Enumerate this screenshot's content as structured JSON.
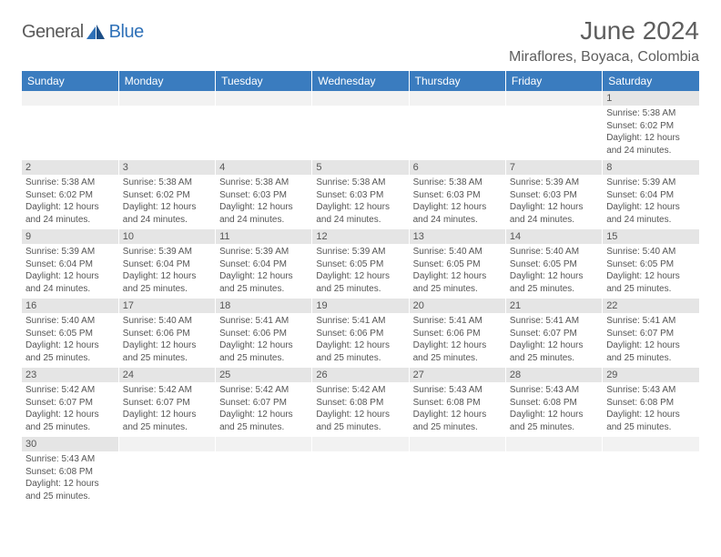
{
  "logo": {
    "text1": "General",
    "text2": "Blue"
  },
  "title": "June 2024",
  "location": "Miraflores, Boyaca, Colombia",
  "colors": {
    "header_bg": "#3a7cbf",
    "header_text": "#ffffff",
    "daynum_bg": "#e5e5e5",
    "blank_bg": "#f2f2f2",
    "text": "#555555",
    "rule": "#3a7cbf"
  },
  "weekdays": [
    "Sunday",
    "Monday",
    "Tuesday",
    "Wednesday",
    "Thursday",
    "Friday",
    "Saturday"
  ],
  "weeks": [
    [
      null,
      null,
      null,
      null,
      null,
      null,
      {
        "d": "1",
        "sr": "5:38 AM",
        "ss": "6:02 PM",
        "dl": "12 hours and 24 minutes."
      }
    ],
    [
      {
        "d": "2",
        "sr": "5:38 AM",
        "ss": "6:02 PM",
        "dl": "12 hours and 24 minutes."
      },
      {
        "d": "3",
        "sr": "5:38 AM",
        "ss": "6:02 PM",
        "dl": "12 hours and 24 minutes."
      },
      {
        "d": "4",
        "sr": "5:38 AM",
        "ss": "6:03 PM",
        "dl": "12 hours and 24 minutes."
      },
      {
        "d": "5",
        "sr": "5:38 AM",
        "ss": "6:03 PM",
        "dl": "12 hours and 24 minutes."
      },
      {
        "d": "6",
        "sr": "5:38 AM",
        "ss": "6:03 PM",
        "dl": "12 hours and 24 minutes."
      },
      {
        "d": "7",
        "sr": "5:39 AM",
        "ss": "6:03 PM",
        "dl": "12 hours and 24 minutes."
      },
      {
        "d": "8",
        "sr": "5:39 AM",
        "ss": "6:04 PM",
        "dl": "12 hours and 24 minutes."
      }
    ],
    [
      {
        "d": "9",
        "sr": "5:39 AM",
        "ss": "6:04 PM",
        "dl": "12 hours and 24 minutes."
      },
      {
        "d": "10",
        "sr": "5:39 AM",
        "ss": "6:04 PM",
        "dl": "12 hours and 25 minutes."
      },
      {
        "d": "11",
        "sr": "5:39 AM",
        "ss": "6:04 PM",
        "dl": "12 hours and 25 minutes."
      },
      {
        "d": "12",
        "sr": "5:39 AM",
        "ss": "6:05 PM",
        "dl": "12 hours and 25 minutes."
      },
      {
        "d": "13",
        "sr": "5:40 AM",
        "ss": "6:05 PM",
        "dl": "12 hours and 25 minutes."
      },
      {
        "d": "14",
        "sr": "5:40 AM",
        "ss": "6:05 PM",
        "dl": "12 hours and 25 minutes."
      },
      {
        "d": "15",
        "sr": "5:40 AM",
        "ss": "6:05 PM",
        "dl": "12 hours and 25 minutes."
      }
    ],
    [
      {
        "d": "16",
        "sr": "5:40 AM",
        "ss": "6:05 PM",
        "dl": "12 hours and 25 minutes."
      },
      {
        "d": "17",
        "sr": "5:40 AM",
        "ss": "6:06 PM",
        "dl": "12 hours and 25 minutes."
      },
      {
        "d": "18",
        "sr": "5:41 AM",
        "ss": "6:06 PM",
        "dl": "12 hours and 25 minutes."
      },
      {
        "d": "19",
        "sr": "5:41 AM",
        "ss": "6:06 PM",
        "dl": "12 hours and 25 minutes."
      },
      {
        "d": "20",
        "sr": "5:41 AM",
        "ss": "6:06 PM",
        "dl": "12 hours and 25 minutes."
      },
      {
        "d": "21",
        "sr": "5:41 AM",
        "ss": "6:07 PM",
        "dl": "12 hours and 25 minutes."
      },
      {
        "d": "22",
        "sr": "5:41 AM",
        "ss": "6:07 PM",
        "dl": "12 hours and 25 minutes."
      }
    ],
    [
      {
        "d": "23",
        "sr": "5:42 AM",
        "ss": "6:07 PM",
        "dl": "12 hours and 25 minutes."
      },
      {
        "d": "24",
        "sr": "5:42 AM",
        "ss": "6:07 PM",
        "dl": "12 hours and 25 minutes."
      },
      {
        "d": "25",
        "sr": "5:42 AM",
        "ss": "6:07 PM",
        "dl": "12 hours and 25 minutes."
      },
      {
        "d": "26",
        "sr": "5:42 AM",
        "ss": "6:08 PM",
        "dl": "12 hours and 25 minutes."
      },
      {
        "d": "27",
        "sr": "5:43 AM",
        "ss": "6:08 PM",
        "dl": "12 hours and 25 minutes."
      },
      {
        "d": "28",
        "sr": "5:43 AM",
        "ss": "6:08 PM",
        "dl": "12 hours and 25 minutes."
      },
      {
        "d": "29",
        "sr": "5:43 AM",
        "ss": "6:08 PM",
        "dl": "12 hours and 25 minutes."
      }
    ],
    [
      {
        "d": "30",
        "sr": "5:43 AM",
        "ss": "6:08 PM",
        "dl": "12 hours and 25 minutes."
      },
      null,
      null,
      null,
      null,
      null,
      null
    ]
  ],
  "labels": {
    "sunrise": "Sunrise:",
    "sunset": "Sunset:",
    "daylight": "Daylight:"
  }
}
